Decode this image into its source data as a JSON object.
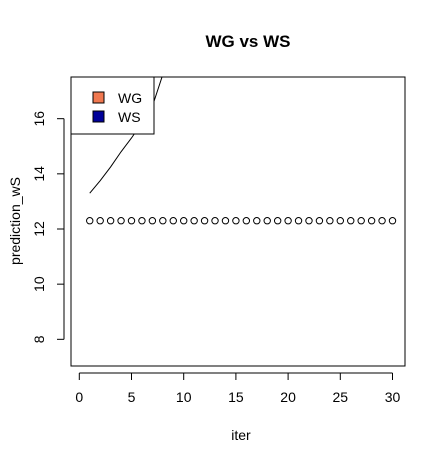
{
  "chart_data": {
    "type": "scatter",
    "title": "WG vs WS",
    "xlabel": "iter",
    "ylabel": "prediction_wS",
    "xlim": [
      1,
      30
    ],
    "ylim": [
      7.0,
      17.6
    ],
    "x_ticks": [
      0,
      5,
      10,
      15,
      20,
      25,
      30
    ],
    "y_ticks": [
      8,
      10,
      12,
      14,
      16
    ],
    "grid": false,
    "legend_position": "top-left",
    "legend": [
      {
        "label": "WG",
        "color": "#F07850"
      },
      {
        "label": "WS",
        "color": "#000099"
      }
    ],
    "series": [
      {
        "name": "WS",
        "marker": "open-circle",
        "x": [
          1,
          2,
          3,
          4,
          5,
          6,
          7,
          8,
          9,
          10,
          11,
          12,
          13,
          14,
          15,
          16,
          17,
          18,
          19,
          20,
          21,
          22,
          23,
          24,
          25,
          26,
          27,
          28,
          29,
          30
        ],
        "y": [
          12.3,
          12.3,
          12.3,
          12.3,
          12.3,
          12.3,
          12.3,
          12.3,
          12.3,
          12.3,
          12.3,
          12.3,
          12.3,
          12.3,
          12.3,
          12.3,
          12.3,
          12.3,
          12.3,
          12.3,
          12.3,
          12.3,
          12.3,
          12.3,
          12.3,
          12.3,
          12.3,
          12.3,
          12.3,
          12.3
        ],
        "color": "#000000"
      },
      {
        "name": "WG",
        "marker": "line",
        "x": [
          1,
          2,
          3,
          4,
          5,
          6,
          7,
          8
        ],
        "y": [
          13.3,
          13.75,
          14.25,
          14.8,
          15.3,
          15.85,
          16.45,
          17.6
        ],
        "color": "#000000"
      }
    ]
  }
}
